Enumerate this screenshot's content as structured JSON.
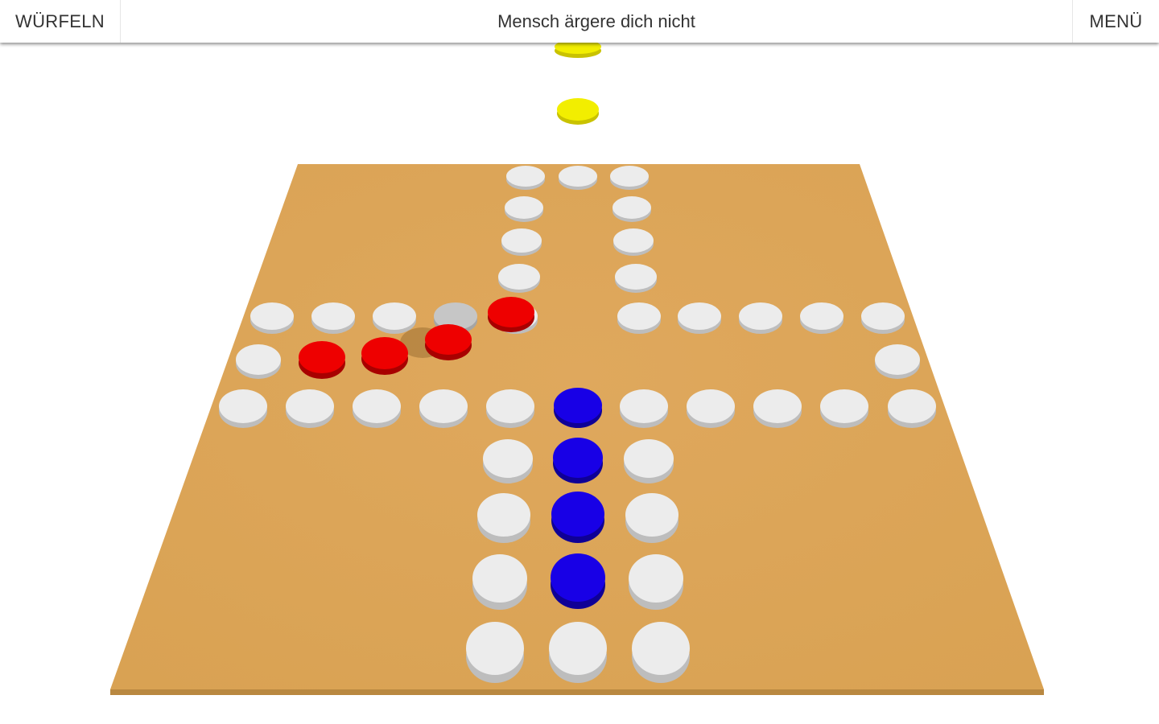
{
  "header": {
    "roll_label": "WÜRFELN",
    "title": "Mensch ärgere dich nicht",
    "menu_label": "MENÜ"
  },
  "colors": {
    "board": "#dca55a",
    "board_edge": "#b98840",
    "field": "#ececec",
    "field_side": "#bdbdbd",
    "highlight_field": "#c6c6c6",
    "red": "#ee0000",
    "blue": "#1800e6",
    "yellow": "#f2ee00"
  },
  "game": {
    "pieces": {
      "yellow": "2 pieces visible above the board",
      "red": "4 pieces visible",
      "blue": "4 pieces in home column"
    }
  }
}
